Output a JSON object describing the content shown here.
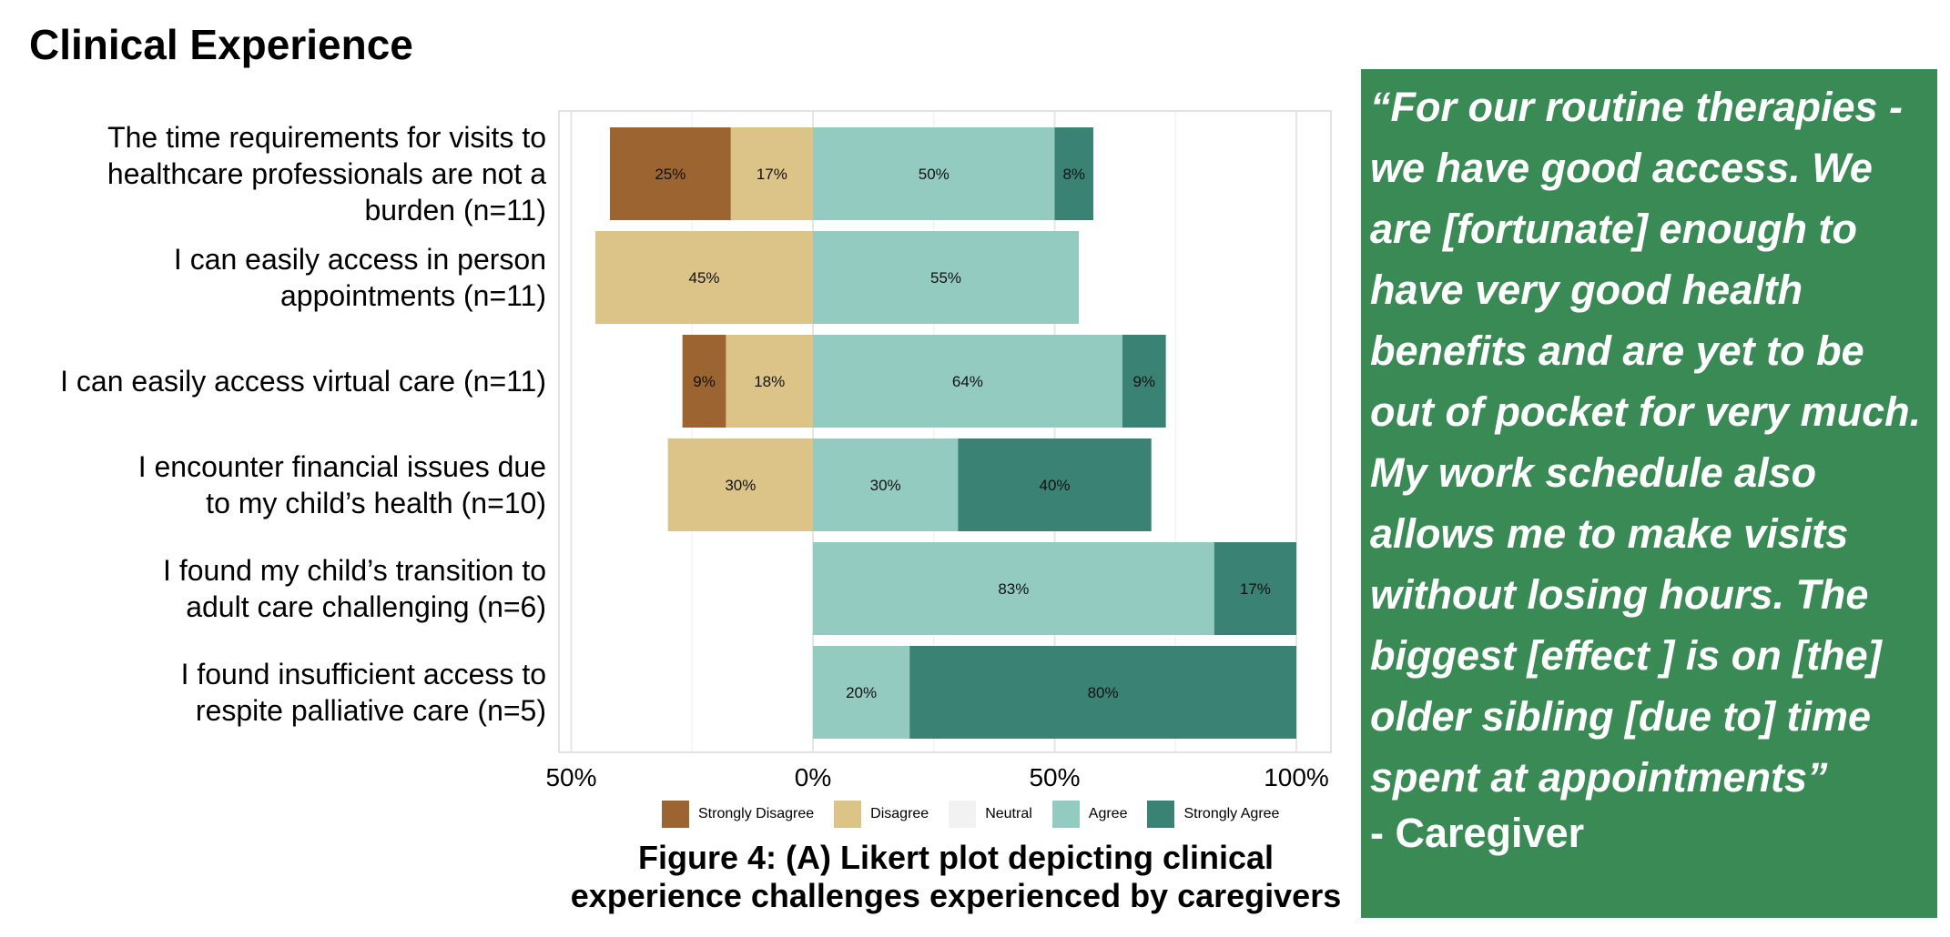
{
  "section": {
    "title": "Clinical Experience"
  },
  "chart_data": {
    "type": "bar",
    "orientation": "horizontal",
    "layout": "diverging-stacked",
    "categories": [
      "The time requirements for visits to healthcare professionals are not a burden (n=11)",
      "I can easily access in person appointments (n=11)",
      "I can easily access virtual care (n=11)",
      "I encounter financial issues due to my child’s health (n=10)",
      "I found my child’s transition to adult care challenging (n=6)",
      "I found insufficient access to respite palliative care (n=5)"
    ],
    "category_lines": [
      [
        "The time requirements for visits to",
        "healthcare professionals are not a",
        "burden (n=11)"
      ],
      [
        "I can easily access in person",
        "appointments (n=11)"
      ],
      [
        "I can easily access virtual care (n=11)"
      ],
      [
        "I encounter financial issues due",
        "to my child’s health (n=10)"
      ],
      [
        "I found my child’s transition to",
        "adult care challenging (n=6)"
      ],
      [
        "I found insufficient access to",
        "respite palliative care (n=5)"
      ]
    ],
    "series": [
      {
        "name": "Strongly Disagree",
        "color": "#9c6430",
        "side": "negative",
        "values": [
          25,
          0,
          9,
          0,
          0,
          0
        ]
      },
      {
        "name": "Disagree",
        "color": "#dcc489",
        "side": "negative",
        "values": [
          17,
          45,
          18,
          30,
          0,
          0
        ]
      },
      {
        "name": "Neutral",
        "color": "#f2f2f2",
        "side": "neutral",
        "values": [
          0,
          0,
          0,
          0,
          0,
          0
        ]
      },
      {
        "name": "Agree",
        "color": "#93cbc1",
        "side": "positive",
        "values": [
          50,
          55,
          64,
          30,
          83,
          20
        ]
      },
      {
        "name": "Strongly Agree",
        "color": "#3a8374",
        "side": "positive",
        "values": [
          8,
          0,
          9,
          40,
          17,
          80
        ]
      }
    ],
    "x_ticks": [
      -50,
      0,
      50,
      100
    ],
    "x_tick_labels": [
      "50%",
      "0%",
      "50%",
      "100%"
    ],
    "xlim": [
      -55,
      107
    ],
    "grid": true,
    "legend": "bottom"
  },
  "caption": {
    "line1": "Figure 4: (A) Likert plot depicting clinical",
    "line2": "experience challenges experienced by caregivers"
  },
  "quote": {
    "text": "“For our routine therapies - we have good access. We are [fortunate] enough to have very good health benefits and are yet to be out of pocket for very much. My work schedule also allows me to make visits without losing hours. The biggest [effect ] is on [the] older sibling [due to] time spent at appointments”",
    "attribution": "- Caregiver",
    "background": "#3a8a55"
  }
}
